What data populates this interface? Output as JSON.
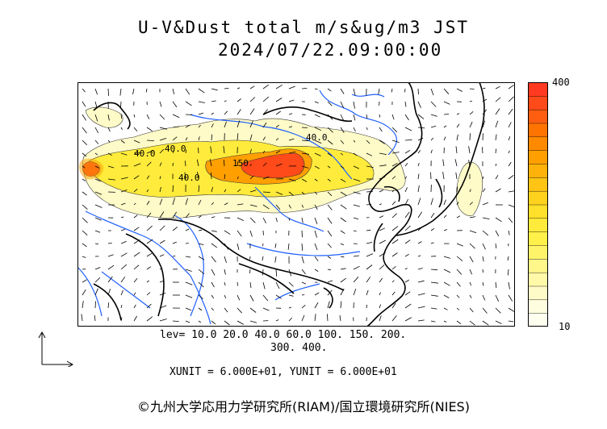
{
  "header": {
    "title": "U-V&Dust total m/s&ug/m3 JST",
    "timestamp": "2024/07/22.09:00:00"
  },
  "map": {
    "contour_labels": [
      "40.0",
      "40.0",
      "150",
      "40.0",
      "40.0"
    ],
    "plume_colors": {
      "low": "#fffbc8",
      "mid": "#ffeb3b",
      "high": "#ff9f00",
      "peak": "#ff4a1a"
    },
    "coastline_color": "#000000",
    "river_color": "#1f5fff"
  },
  "colorbar": {
    "max_label": "400",
    "min_label": "10",
    "colors": [
      "#fffff0",
      "#fffde0",
      "#fffbc8",
      "#fff9a8",
      "#fff78a",
      "#fff36a",
      "#fff04a",
      "#ffeb3b",
      "#ffe02a",
      "#ffd21e",
      "#ffc414",
      "#ffb20a",
      "#ffa000",
      "#ff8a00",
      "#ff7400",
      "#ff5e10",
      "#ff4a1a",
      "#ff3a20"
    ]
  },
  "legend": {
    "levels_line1": "lev= 10.0 20.0 40.0 60.0 100. 150. 200.",
    "levels_line2": "300. 400.",
    "units": "XUNIT = 6.000E+01, YUNIT = 6.000E+01"
  },
  "footer": {
    "copyright": "©九州大学応用力学研究所(RIAM)/国立環境研究所(NIES)"
  }
}
